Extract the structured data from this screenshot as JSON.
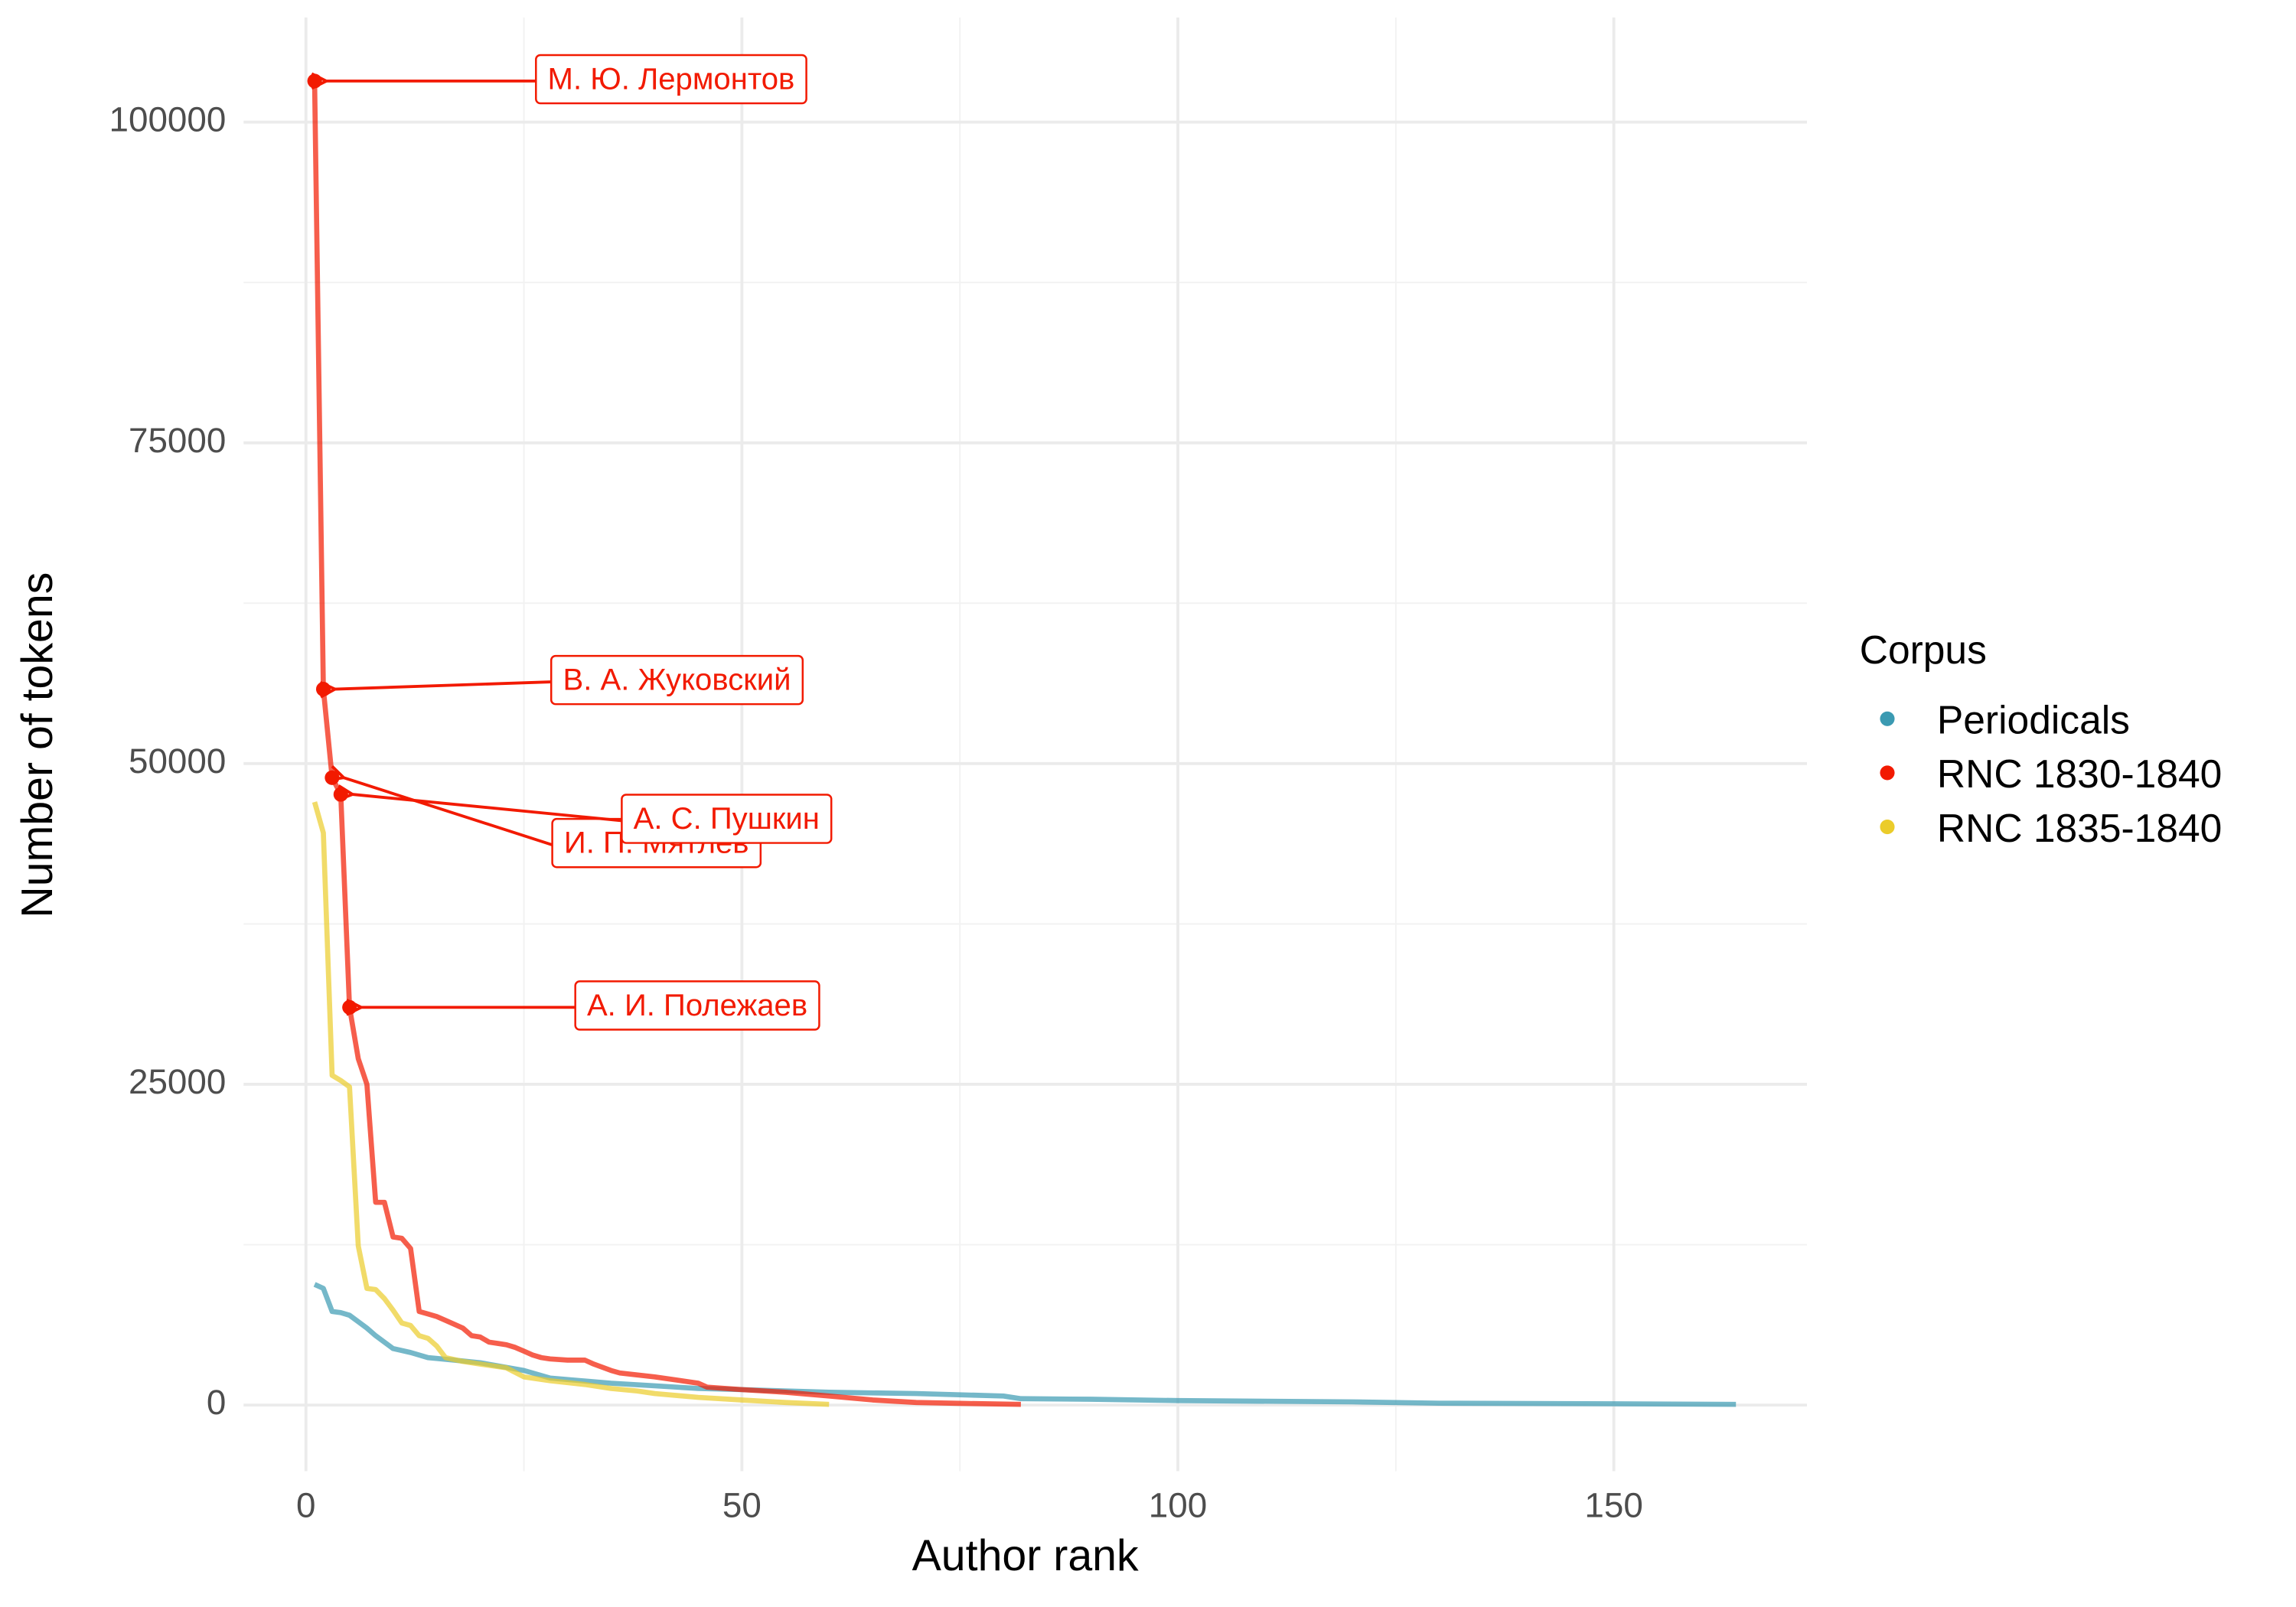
{
  "chart_data": {
    "type": "line",
    "x_label": "Author rank",
    "y_label": "Number of tokens",
    "xlim": [
      -7.15,
      172.15
    ],
    "ylim": [
      -5150,
      108150
    ],
    "xticks": [
      0,
      50,
      100,
      150
    ],
    "yticks": [
      0,
      25000,
      50000,
      75000,
      100000
    ],
    "grid": true,
    "minor_grid": true,
    "legend_title": "Corpus",
    "legend_position": "right",
    "series": [
      {
        "name": "Periodicals",
        "color": "#3b9ab2",
        "x": [
          1,
          2,
          3,
          4,
          5,
          6,
          7,
          8,
          9,
          10,
          12,
          14,
          17,
          20,
          25,
          28,
          35,
          40,
          45,
          50,
          60,
          70,
          80,
          82,
          90,
          100,
          120,
          130,
          150,
          164
        ],
        "values": [
          9400,
          9100,
          7300,
          7200,
          7000,
          6500,
          6000,
          5400,
          4900,
          4400,
          4100,
          3700,
          3500,
          3300,
          2700,
          2100,
          1700,
          1500,
          1300,
          1200,
          1000,
          900,
          700,
          500,
          450,
          350,
          250,
          150,
          100,
          50
        ]
      },
      {
        "name": "RNC 1830-1840",
        "color": "#f21a00",
        "x": [
          1,
          2,
          3,
          4,
          5,
          6,
          7,
          8,
          9,
          10,
          11,
          12,
          13,
          14,
          15,
          16,
          17,
          18,
          19,
          20,
          21,
          22,
          23,
          24,
          25,
          26,
          27,
          28,
          30,
          32,
          33,
          35,
          36,
          40,
          42,
          45,
          46,
          50,
          55,
          60,
          65,
          70,
          75,
          82
        ],
        "values": [
          103200,
          55800,
          48900,
          47600,
          31000,
          27000,
          25000,
          15800,
          15800,
          13100,
          13000,
          12200,
          7300,
          7100,
          6900,
          6600,
          6300,
          6000,
          5400,
          5300,
          4900,
          4800,
          4700,
          4500,
          4200,
          3900,
          3700,
          3600,
          3500,
          3500,
          3200,
          2700,
          2500,
          2200,
          2000,
          1700,
          1400,
          1200,
          1000,
          700,
          400,
          200,
          130,
          50
        ]
      },
      {
        "name": "RNC 1835-1840",
        "color": "#ebcc2a",
        "x": [
          1,
          2,
          3,
          4,
          5,
          6,
          7,
          8,
          9,
          10,
          11,
          12,
          13,
          14,
          15,
          16,
          18,
          20,
          23,
          25,
          28,
          32,
          35,
          38,
          40,
          45,
          50,
          55,
          60
        ],
        "values": [
          47000,
          44600,
          25700,
          25300,
          24800,
          12400,
          9100,
          9000,
          8300,
          7400,
          6400,
          6200,
          5400,
          5200,
          4600,
          3700,
          3400,
          3200,
          2900,
          2200,
          1900,
          1600,
          1300,
          1100,
          900,
          600,
          400,
          200,
          50
        ]
      }
    ],
    "annotations": [
      {
        "text": "М. Ю. Лермонтов",
        "x": 1,
        "y": 103200
      },
      {
        "text": "В. А. Жуковский",
        "x": 2,
        "y": 55800
      },
      {
        "text": "И. П. Мятлев",
        "x": 3,
        "y": 48900
      },
      {
        "text": "А. С. Пушкин",
        "x": 4,
        "y": 47600
      },
      {
        "text": "А. И. Полежаев",
        "x": 5,
        "y": 31000
      }
    ],
    "annotation_color": "#f21a00"
  }
}
